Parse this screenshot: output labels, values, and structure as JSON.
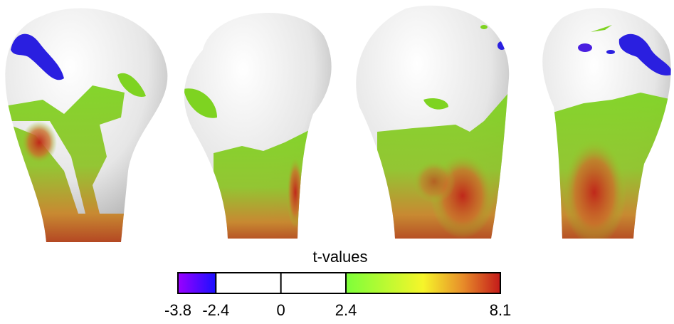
{
  "colorbar": {
    "title": "t-values",
    "ticks": [
      -3.8,
      -2.4,
      0,
      2.4,
      8.1
    ]
  }
}
